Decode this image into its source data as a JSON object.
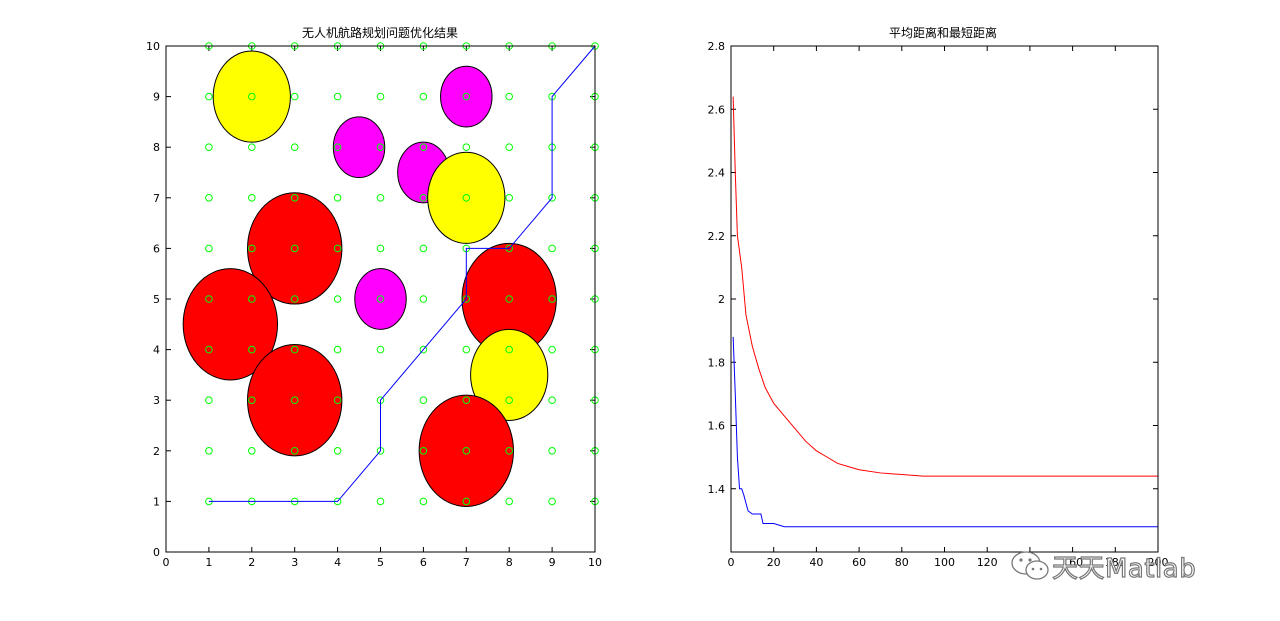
{
  "chart_data": [
    {
      "type": "scatter",
      "title": "无人机航路规划问题优化结果",
      "xlim": [
        0,
        10
      ],
      "ylim": [
        0,
        10
      ],
      "xticks": [
        0,
        1,
        2,
        3,
        4,
        5,
        6,
        7,
        8,
        9,
        10
      ],
      "yticks": [
        0,
        1,
        2,
        3,
        4,
        5,
        6,
        7,
        8,
        9,
        10
      ],
      "grid_points": {
        "x": [
          1,
          2,
          3,
          4,
          5,
          6,
          7,
          8,
          9,
          10
        ],
        "y": [
          1,
          2,
          3,
          4,
          5,
          6,
          7,
          8,
          9,
          10
        ],
        "color": "#00ff00"
      },
      "obstacles": [
        {
          "x": 2,
          "y": 9,
          "rx": 0.9,
          "ry": 0.9,
          "color": "#ffff00"
        },
        {
          "x": 7,
          "y": 9,
          "rx": 0.6,
          "ry": 0.6,
          "color": "#ff00ff"
        },
        {
          "x": 4.5,
          "y": 8,
          "rx": 0.6,
          "ry": 0.6,
          "color": "#ff00ff"
        },
        {
          "x": 6,
          "y": 7.5,
          "rx": 0.6,
          "ry": 0.6,
          "color": "#ff00ff"
        },
        {
          "x": 7,
          "y": 7,
          "rx": 0.9,
          "ry": 0.9,
          "color": "#ffff00"
        },
        {
          "x": 3,
          "y": 6,
          "rx": 1.1,
          "ry": 1.1,
          "color": "#ff0000"
        },
        {
          "x": 5,
          "y": 5,
          "rx": 0.6,
          "ry": 0.6,
          "color": "#ff00ff"
        },
        {
          "x": 1.5,
          "y": 4.5,
          "rx": 1.1,
          "ry": 1.1,
          "color": "#ff0000"
        },
        {
          "x": 8,
          "y": 5,
          "rx": 1.1,
          "ry": 1.1,
          "color": "#ff0000"
        },
        {
          "x": 3,
          "y": 3,
          "rx": 1.1,
          "ry": 1.1,
          "color": "#ff0000"
        },
        {
          "x": 8,
          "y": 3.5,
          "rx": 0.9,
          "ry": 0.9,
          "color": "#ffff00"
        },
        {
          "x": 7,
          "y": 2,
          "rx": 1.1,
          "ry": 1.1,
          "color": "#ff0000"
        }
      ],
      "path": {
        "color": "#0000ff",
        "x": [
          1,
          2,
          3,
          4,
          5,
          5,
          6,
          7,
          7,
          8,
          9,
          9,
          10
        ],
        "y": [
          1,
          1,
          1,
          1,
          2,
          3,
          4,
          5,
          6,
          6,
          7,
          9,
          10
        ]
      }
    },
    {
      "type": "line",
      "title": "平均距离和最短距离",
      "xlim": [
        0,
        200
      ],
      "ylim": [
        1.2,
        2.8
      ],
      "xticks": [
        0,
        20,
        40,
        60,
        80,
        100,
        120,
        140,
        160,
        180,
        200
      ],
      "yticks": [
        1.4,
        1.6,
        1.8,
        2,
        2.2,
        2.4,
        2.6,
        2.8
      ],
      "series": [
        {
          "color": "#ff0000",
          "x": [
            1,
            2,
            3,
            5,
            7,
            10,
            13,
            16,
            20,
            25,
            30,
            35,
            40,
            45,
            50,
            55,
            60,
            70,
            80,
            90,
            100,
            110,
            120,
            140,
            160,
            180,
            200
          ],
          "values": [
            2.64,
            2.4,
            2.2,
            2.1,
            1.95,
            1.85,
            1.78,
            1.72,
            1.67,
            1.63,
            1.59,
            1.55,
            1.52,
            1.5,
            1.48,
            1.47,
            1.46,
            1.45,
            1.445,
            1.44,
            1.44,
            1.44,
            1.44,
            1.44,
            1.44,
            1.44,
            1.44
          ]
        },
        {
          "color": "#0000ff",
          "x": [
            1,
            2,
            3,
            4,
            5,
            6,
            8,
            10,
            12,
            14,
            15,
            20,
            25,
            30,
            200
          ],
          "values": [
            1.88,
            1.7,
            1.5,
            1.4,
            1.4,
            1.38,
            1.33,
            1.32,
            1.32,
            1.32,
            1.29,
            1.29,
            1.28,
            1.28,
            1.28
          ]
        }
      ]
    }
  ],
  "watermark": {
    "text": "天天Matlab",
    "icon": "wechat-icon"
  }
}
